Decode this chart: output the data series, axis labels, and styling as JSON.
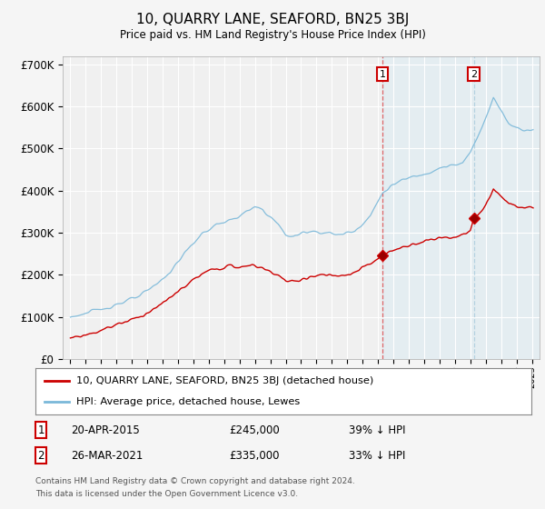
{
  "title": "10, QUARRY LANE, SEAFORD, BN25 3BJ",
  "subtitle": "Price paid vs. HM Land Registry's House Price Index (HPI)",
  "ylim": [
    0,
    720000
  ],
  "yticks": [
    0,
    100000,
    200000,
    300000,
    400000,
    500000,
    600000,
    700000
  ],
  "ytick_labels": [
    "£0",
    "£100K",
    "£200K",
    "£300K",
    "£400K",
    "£500K",
    "£600K",
    "£700K"
  ],
  "background_color": "#f5f5f5",
  "plot_bg_color": "#f0f0f0",
  "grid_color": "#ffffff",
  "hpi_color": "#7ab8d9",
  "price_color": "#cc0000",
  "shade_color": "#d0e8f5",
  "legend_label1": "10, QUARRY LANE, SEAFORD, BN25 3BJ (detached house)",
  "legend_label2": "HPI: Average price, detached house, Lewes",
  "footnote": "Contains HM Land Registry data © Crown copyright and database right 2024.\nThis data is licensed under the Open Government Licence v3.0.",
  "xlim_start": 1994.5,
  "xlim_end": 2025.5,
  "sale1_x": 2015.29,
  "sale2_x": 2021.23,
  "sale1_price": 245000,
  "sale2_price": 335000
}
